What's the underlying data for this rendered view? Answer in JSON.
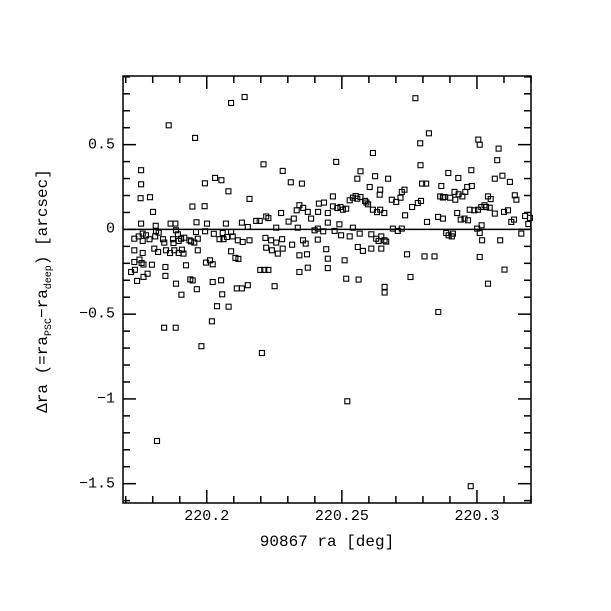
{
  "figure": {
    "background_color": "#ffffff",
    "plot_line_color": "#000000",
    "title": ""
  },
  "chart_data": {
    "type": "scatter",
    "title": "",
    "xlabel": "90867 ra [deg]",
    "ylabel": "Δra (=raPSC−radeep) [arcsec]",
    "ylabel_parts": [
      {
        "text": "Δra (=ra"
      },
      {
        "sub": "PSC"
      },
      {
        "text": "−ra"
      },
      {
        "sub": "deep"
      },
      {
        "text": ") [arcsec]"
      }
    ],
    "xlim": [
      220.169,
      220.32
    ],
    "ylim": [
      -1.614,
      0.905
    ],
    "x_major_ticks": [
      220.2,
      220.25,
      220.3
    ],
    "x_tick_labels": [
      "220.2",
      "220.25",
      "220.3"
    ],
    "x_minor_step": 0.01,
    "y_major_ticks": [
      0.5,
      0,
      -0.5,
      -1,
      -1.5
    ],
    "y_tick_labels": [
      "0.5",
      "0",
      "−0.5",
      "−1",
      "−1.5"
    ],
    "y_minor_step": 0.1,
    "grid": false,
    "legend": null,
    "zero_line_y": 0,
    "marker": {
      "shape": "open-square",
      "size": 5,
      "color": "#000000"
    },
    "points": [
      [
        220.214,
        0.781
      ],
      [
        220.209,
        0.746
      ],
      [
        220.1859,
        0.614
      ],
      [
        220.1957,
        0.54
      ],
      [
        220.221,
        0.384
      ],
      [
        220.1757,
        0.349
      ],
      [
        220.2281,
        0.345
      ],
      [
        220.1757,
        0.266
      ],
      [
        220.1993,
        0.272
      ],
      [
        220.2031,
        0.304
      ],
      [
        220.2054,
        0.29
      ],
      [
        220.208,
        0.225
      ],
      [
        220.2311,
        0.278
      ],
      [
        220.2352,
        0.27
      ],
      [
        220.1755,
        0.184
      ],
      [
        220.179,
        0.19
      ],
      [
        220.2158,
        0.18
      ],
      [
        220.1801,
        0.103
      ],
      [
        220.1947,
        0.135
      ],
      [
        220.1992,
        0.137
      ],
      [
        220.222,
        0.076
      ],
      [
        220.2228,
        0.067
      ],
      [
        220.2196,
        0.05
      ],
      [
        220.2183,
        0.05
      ],
      [
        220.2275,
        0.097
      ],
      [
        220.2343,
        0.143
      ],
      [
        220.2357,
        0.127
      ],
      [
        220.2333,
        0.113
      ],
      [
        220.2415,
        0.152
      ],
      [
        220.2434,
        0.158
      ],
      [
        220.2412,
        0.103
      ],
      [
        220.2374,
        0.103
      ],
      [
        220.2386,
        0.064
      ],
      [
        220.2303,
        0.046
      ],
      [
        220.2322,
        0.064
      ],
      [
        220.1757,
        0.034
      ],
      [
        220.1866,
        0.034
      ],
      [
        220.1884,
        0.034
      ],
      [
        220.1962,
        0.042
      ],
      [
        220.2001,
        0.034
      ],
      [
        220.2071,
        0.034
      ],
      [
        220.213,
        0.04
      ],
      [
        220.2152,
        0.014
      ],
      [
        220.2257,
        0.01
      ],
      [
        220.2337,
        0.01
      ],
      [
        220.2399,
        -0.005
      ],
      [
        220.2411,
        0.005
      ],
      [
        220.2431,
        -0.011
      ],
      [
        220.1886,
        -0.005
      ],
      [
        220.1893,
        -0.029
      ],
      [
        220.1812,
        -0.009
      ],
      [
        220.1822,
        -0.019
      ],
      [
        220.1763,
        -0.025
      ],
      [
        220.1775,
        -0.035
      ],
      [
        220.196,
        -0.015
      ],
      [
        220.1994,
        -0.011
      ],
      [
        220.2059,
        -0.021
      ],
      [
        220.209,
        -0.015
      ],
      [
        220.1811,
        0.021
      ],
      [
        220.2026,
        -0.026
      ],
      [
        220.1732,
        -0.055
      ],
      [
        220.1748,
        -0.041
      ],
      [
        220.1763,
        -0.068
      ],
      [
        220.1788,
        -0.058
      ],
      [
        220.1809,
        -0.041
      ],
      [
        220.1838,
        -0.058
      ],
      [
        220.1843,
        -0.078
      ],
      [
        220.1875,
        -0.058
      ],
      [
        220.1877,
        -0.08
      ],
      [
        220.1896,
        -0.068
      ],
      [
        220.1905,
        -0.055
      ],
      [
        220.1917,
        -0.049
      ],
      [
        220.1936,
        -0.064
      ],
      [
        220.1942,
        -0.071
      ],
      [
        220.1954,
        -0.078
      ],
      [
        220.1967,
        -0.055
      ],
      [
        220.2047,
        -0.058
      ],
      [
        220.2062,
        -0.058
      ],
      [
        220.2075,
        -0.045
      ],
      [
        220.2096,
        -0.041
      ],
      [
        220.2115,
        -0.064
      ],
      [
        220.2133,
        -0.074
      ],
      [
        220.2158,
        -0.064
      ],
      [
        220.2217,
        -0.05
      ],
      [
        220.2238,
        -0.064
      ],
      [
        220.2257,
        -0.078
      ],
      [
        220.2279,
        -0.058
      ],
      [
        220.2316,
        -0.09
      ],
      [
        220.2356,
        -0.064
      ],
      [
        220.2366,
        -0.084
      ],
      [
        220.2411,
        -0.06
      ],
      [
        220.2442,
        -0.117
      ],
      [
        220.1732,
        -0.123
      ],
      [
        220.1763,
        -0.139
      ],
      [
        220.1806,
        -0.113
      ],
      [
        220.182,
        -0.133
      ],
      [
        220.1849,
        -0.123
      ],
      [
        220.1864,
        -0.139
      ],
      [
        220.188,
        -0.123
      ],
      [
        220.1896,
        -0.139
      ],
      [
        220.1908,
        -0.12
      ],
      [
        220.1914,
        -0.143
      ],
      [
        220.1967,
        -0.123
      ],
      [
        220.209,
        -0.129
      ],
      [
        220.2106,
        -0.168
      ],
      [
        220.2117,
        -0.174
      ],
      [
        220.222,
        -0.108
      ],
      [
        220.2241,
        -0.123
      ],
      [
        220.2263,
        -0.143
      ],
      [
        220.2281,
        -0.113
      ],
      [
        220.2343,
        -0.153
      ],
      [
        220.2371,
        -0.147
      ],
      [
        220.1732,
        -0.192
      ],
      [
        220.1751,
        -0.178
      ],
      [
        220.1759,
        -0.198
      ],
      [
        220.1766,
        -0.207
      ],
      [
        220.1797,
        -0.208
      ],
      [
        220.1847,
        -0.222
      ],
      [
        220.1923,
        -0.212
      ],
      [
        220.1997,
        -0.196
      ],
      [
        220.2012,
        -0.182
      ],
      [
        220.2022,
        -0.206
      ],
      [
        220.2198,
        -0.239
      ],
      [
        220.2213,
        -0.239
      ],
      [
        220.2228,
        -0.239
      ],
      [
        220.2343,
        -0.251
      ],
      [
        220.2374,
        -0.226
      ],
      [
        220.1734,
        -0.238
      ],
      [
        220.172,
        -0.251
      ],
      [
        220.1766,
        -0.28
      ],
      [
        220.1781,
        -0.261
      ],
      [
        220.1847,
        -0.274
      ],
      [
        220.1939,
        -0.295
      ],
      [
        220.1948,
        -0.301
      ],
      [
        220.1886,
        -0.32
      ],
      [
        220.1963,
        -0.353
      ],
      [
        220.2022,
        -0.31
      ],
      [
        220.2053,
        -0.3
      ],
      [
        220.2111,
        -0.348
      ],
      [
        220.213,
        -0.348
      ],
      [
        220.2152,
        -0.329
      ],
      [
        220.2251,
        -0.335
      ],
      [
        220.1742,
        -0.304
      ],
      [
        220.1906,
        -0.385
      ],
      [
        220.2057,
        -0.383
      ],
      [
        220.2038,
        -0.453
      ],
      [
        220.2081,
        -0.456
      ],
      [
        220.2019,
        -0.542
      ],
      [
        220.1842,
        -0.58
      ],
      [
        220.1885,
        -0.58
      ],
      [
        220.198,
        -0.689
      ],
      [
        220.2204,
        -0.729
      ],
      [
        220.1816,
        -1.248
      ],
      [
        220.2772,
        0.774
      ],
      [
        220.2822,
        0.567
      ],
      [
        220.279,
        0.508
      ],
      [
        220.3005,
        0.53
      ],
      [
        220.301,
        0.5
      ],
      [
        220.308,
        0.477
      ],
      [
        220.2615,
        0.451
      ],
      [
        220.2479,
        0.398
      ],
      [
        220.3075,
        0.408
      ],
      [
        220.2569,
        0.343
      ],
      [
        220.2791,
        0.379
      ],
      [
        220.2894,
        0.333
      ],
      [
        220.2979,
        0.349
      ],
      [
        220.2557,
        0.299
      ],
      [
        220.2623,
        0.314
      ],
      [
        220.2671,
        0.299
      ],
      [
        220.2931,
        0.303
      ],
      [
        220.3066,
        0.299
      ],
      [
        220.3094,
        0.317
      ],
      [
        220.3122,
        0.28
      ],
      [
        220.2603,
        0.25
      ],
      [
        220.2642,
        0.234
      ],
      [
        220.2722,
        0.221
      ],
      [
        220.2732,
        0.234
      ],
      [
        220.2797,
        0.27
      ],
      [
        220.2812,
        0.27
      ],
      [
        220.2868,
        0.256
      ],
      [
        220.2964,
        0.25
      ],
      [
        220.2981,
        0.256
      ],
      [
        220.264,
        0.205
      ],
      [
        220.2467,
        0.195
      ],
      [
        220.2529,
        0.172
      ],
      [
        220.2541,
        0.187
      ],
      [
        220.2551,
        0.197
      ],
      [
        220.2557,
        0.181
      ],
      [
        220.2569,
        0.191
      ],
      [
        220.2586,
        0.168
      ],
      [
        220.2591,
        0.159
      ],
      [
        220.2597,
        0.148
      ],
      [
        220.2685,
        0.175
      ],
      [
        220.2701,
        0.162
      ],
      [
        220.2717,
        0.187
      ],
      [
        220.2781,
        0.156
      ],
      [
        220.2793,
        0.168
      ],
      [
        220.2864,
        0.195
      ],
      [
        220.2874,
        0.188
      ],
      [
        220.288,
        0.191
      ],
      [
        220.2901,
        0.187
      ],
      [
        220.2917,
        0.221
      ],
      [
        220.2932,
        0.207
      ],
      [
        220.2946,
        0.195
      ],
      [
        220.292,
        0.175
      ],
      [
        220.2957,
        0.221
      ],
      [
        220.3041,
        0.195
      ],
      [
        220.3051,
        0.179
      ],
      [
        220.314,
        0.201
      ],
      [
        220.3146,
        0.175
      ],
      [
        220.2467,
        0.136
      ],
      [
        220.2483,
        0.126
      ],
      [
        220.2495,
        0.132
      ],
      [
        220.2504,
        0.116
      ],
      [
        220.2516,
        0.122
      ],
      [
        220.2615,
        0.116
      ],
      [
        220.263,
        0.102
      ],
      [
        220.2642,
        0.116
      ],
      [
        220.2657,
        0.097
      ],
      [
        220.2734,
        0.083
      ],
      [
        220.276,
        0.132
      ],
      [
        220.2815,
        0.044
      ],
      [
        220.2856,
        0.074
      ],
      [
        220.2874,
        0.064
      ],
      [
        220.2927,
        0.097
      ],
      [
        220.294,
        0.058
      ],
      [
        220.2954,
        0.064
      ],
      [
        220.2967,
        0.054
      ],
      [
        220.2973,
        0.116
      ],
      [
        220.299,
        0.113
      ],
      [
        220.3004,
        0.116
      ],
      [
        220.3016,
        0.132
      ],
      [
        220.3028,
        0.142
      ],
      [
        220.3034,
        0.132
      ],
      [
        220.3047,
        0.128
      ],
      [
        220.3066,
        0.093
      ],
      [
        220.31,
        0.103
      ],
      [
        220.3115,
        0.113
      ],
      [
        220.3127,
        0.044
      ],
      [
        220.3137,
        0.058
      ],
      [
        220.2448,
        0.097
      ],
      [
        220.2448,
        0.04
      ],
      [
        220.2491,
        0.03
      ],
      [
        220.2541,
        0.01
      ],
      [
        220.2473,
        -0.009
      ],
      [
        220.2497,
        -0.035
      ],
      [
        220.2529,
        -0.041
      ],
      [
        220.2566,
        -0.025
      ],
      [
        220.2609,
        -0.029
      ],
      [
        220.2627,
        -0.055
      ],
      [
        220.2646,
        -0.041
      ],
      [
        220.2658,
        -0.064
      ],
      [
        220.2664,
        -0.072
      ],
      [
        220.2636,
        -0.068
      ],
      [
        220.2689,
        0.005
      ],
      [
        220.2707,
        -0.009
      ],
      [
        220.2722,
        0.005
      ],
      [
        220.2886,
        -0.021
      ],
      [
        220.2895,
        -0.035
      ],
      [
        220.2907,
        -0.041
      ],
      [
        220.2911,
        -0.025
      ],
      [
        220.3001,
        0.005
      ],
      [
        220.301,
        -0.021
      ],
      [
        220.3019,
        -0.064
      ],
      [
        220.3086,
        -0.064
      ],
      [
        220.3164,
        -0.025
      ],
      [
        220.3017,
        0.024
      ],
      [
        220.2559,
        -0.104
      ],
      [
        220.2578,
        -0.127
      ],
      [
        220.2609,
        -0.113
      ],
      [
        220.2646,
        -0.113
      ],
      [
        220.2741,
        -0.147
      ],
      [
        220.2806,
        -0.159
      ],
      [
        220.2843,
        -0.159
      ],
      [
        220.301,
        -0.163
      ],
      [
        220.3102,
        -0.237
      ],
      [
        220.251,
        -0.182
      ],
      [
        220.2448,
        -0.173
      ],
      [
        220.2448,
        -0.228
      ],
      [
        220.2516,
        -0.291
      ],
      [
        220.2562,
        -0.296
      ],
      [
        220.2754,
        -0.281
      ],
      [
        220.3041,
        -0.32
      ],
      [
        220.3178,
        0.079
      ],
      [
        220.3196,
        0.068
      ],
      [
        220.319,
        0.032
      ],
      [
        220.2658,
        -0.339
      ],
      [
        220.2658,
        -0.372
      ],
      [
        220.2857,
        -0.487
      ],
      [
        220.252,
        -1.014
      ],
      [
        220.2977,
        -1.515
      ]
    ]
  }
}
